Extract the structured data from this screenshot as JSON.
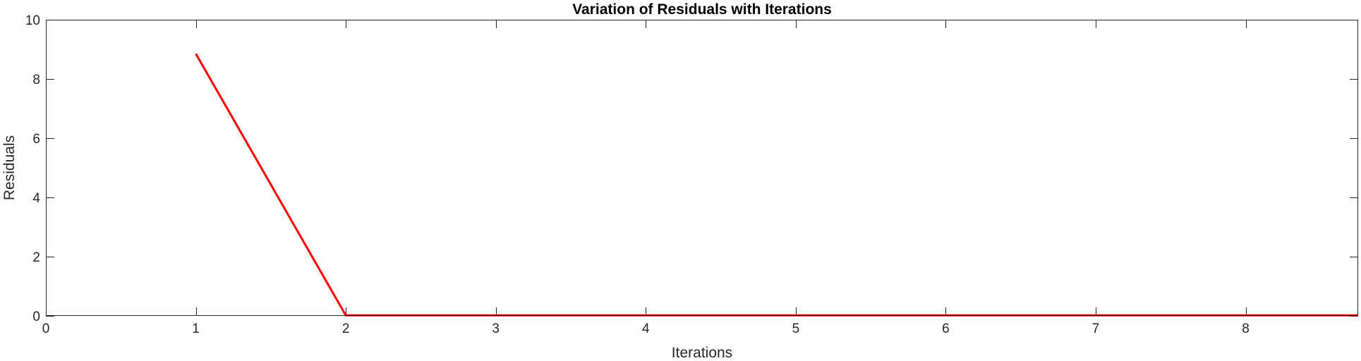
{
  "chart_data": {
    "type": "line",
    "title": "Variation of Residuals with Iterations",
    "xlabel": "Iterations",
    "ylabel": "Residuals",
    "xlim": [
      0,
      8.75
    ],
    "ylim": [
      0,
      10
    ],
    "x_ticks": [
      0,
      1,
      2,
      3,
      4,
      5,
      6,
      7,
      8
    ],
    "x_tick_labels": [
      "0",
      "1",
      "2",
      "3",
      "4",
      "5",
      "6",
      "7",
      "8"
    ],
    "y_ticks": [
      0,
      2,
      4,
      6,
      8,
      10
    ],
    "y_tick_labels": [
      "0",
      "2",
      "4",
      "6",
      "8",
      "10"
    ],
    "grid": false,
    "box": true,
    "series": [
      {
        "color": "#ff0000",
        "x": [
          1,
          2,
          3,
          4,
          5,
          6,
          7,
          8,
          8.75
        ],
        "y": [
          8.85,
          0.02,
          0.02,
          0.02,
          0.02,
          0.02,
          0.02,
          0.02,
          0.02
        ]
      }
    ],
    "colors": {
      "axis": "#262626",
      "background": "#ffffff"
    }
  }
}
